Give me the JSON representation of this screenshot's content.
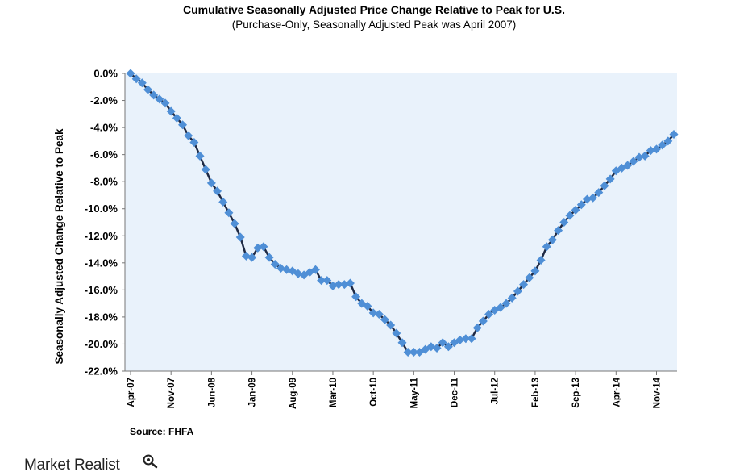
{
  "chart_data": {
    "type": "line",
    "title": "Cumulative Seasonally Adjusted Price Change Relative to Peak for U.S.",
    "subtitle": "(Purchase-Only, Seasonally Adjusted Peak was April 2007)",
    "ylabel": "Seasonally Adjusted Change Relative to Peak",
    "xlabel": "",
    "ylim": [
      -22.0,
      0.0
    ],
    "y_ticks": [
      "0.0%",
      "-2.0%",
      "-4.0%",
      "-6.0%",
      "-8.0%",
      "-10.0%",
      "-12.0%",
      "-14.0%",
      "-16.0%",
      "-18.0%",
      "-20.0%",
      "-22.0%"
    ],
    "x_ticks": [
      "Apr-07",
      "Nov-07",
      "Jun-08",
      "Jan-09",
      "Aug-09",
      "Mar-10",
      "Oct-10",
      "May-11",
      "Dec-11",
      "Jul-12",
      "Feb-13",
      "Sep-13",
      "Apr-14",
      "Nov-14"
    ],
    "grid": false,
    "colors": {
      "plot_bg": "#e9f2fb",
      "line": "#1f2a44",
      "marker": "#4f8fd6"
    },
    "series": [
      {
        "name": "",
        "values": [
          0.0,
          -0.4,
          -0.7,
          -1.2,
          -1.6,
          -1.9,
          -2.2,
          -2.8,
          -3.3,
          -3.8,
          -4.6,
          -5.1,
          -6.1,
          -7.1,
          -8.1,
          -8.7,
          -9.5,
          -10.3,
          -11.1,
          -12.1,
          -13.5,
          -13.6,
          -12.9,
          -12.8,
          -13.6,
          -14.1,
          -14.4,
          -14.5,
          -14.6,
          -14.8,
          -14.9,
          -14.7,
          -14.5,
          -15.3,
          -15.3,
          -15.7,
          -15.6,
          -15.6,
          -15.5,
          -16.5,
          -17.0,
          -17.2,
          -17.7,
          -17.8,
          -18.2,
          -18.6,
          -19.2,
          -19.9,
          -20.6,
          -20.6,
          -20.6,
          -20.4,
          -20.2,
          -20.3,
          -19.9,
          -20.2,
          -19.9,
          -19.7,
          -19.6,
          -19.6,
          -18.8,
          -18.3,
          -17.8,
          -17.5,
          -17.3,
          -17.0,
          -16.6,
          -16.1,
          -15.6,
          -15.1,
          -14.6,
          -13.8,
          -12.8,
          -12.3,
          -11.6,
          -11.0,
          -10.5,
          -10.1,
          -9.7,
          -9.3,
          -9.2,
          -8.8,
          -8.3,
          -7.8,
          -7.2,
          -7.0,
          -6.8,
          -6.5,
          -6.2,
          -6.1,
          -5.7,
          -5.6,
          -5.3,
          -5.0,
          -4.5
        ]
      }
    ]
  },
  "source": "Source: FHFA",
  "logo": {
    "text": "Market Realist",
    "icon": "magnifier-icon"
  }
}
